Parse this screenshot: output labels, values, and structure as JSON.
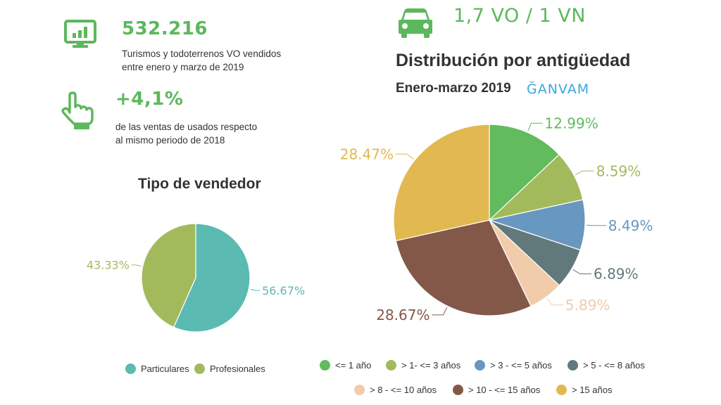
{
  "colors": {
    "accent": "#5cb85c",
    "ganvam": "#3aa6dc",
    "teal": "#5bbab1",
    "olive": "#a2ba5c"
  },
  "stats": [
    {
      "icon": "monitor-chart-icon",
      "value": "532.216",
      "desc_line1": "Turismos y todoterrenos VO vendidos",
      "desc_line2": "entre enero y marzo de 2019"
    },
    {
      "icon": "hand-pointer-icon",
      "value": "+4,1%",
      "desc_line1": "de las ventas de usados respecto",
      "desc_line2": "al mismo periodo de 2018"
    }
  ],
  "ratio": {
    "icon": "car-icon",
    "value": "1,7 VO / 1 VN"
  },
  "brand": {
    "logo": "ĞANVAM"
  },
  "chart_data": [
    {
      "type": "pie",
      "title": "Tipo de vendedor",
      "labels": [
        "Particulares",
        "Profesionales"
      ],
      "values": [
        56.67,
        43.33
      ],
      "value_labels": [
        "56.67%",
        "43.33%"
      ],
      "colors": [
        "#5bbab1",
        "#a2ba5c"
      ],
      "start_angle_deg": 0,
      "legend": "bottom"
    },
    {
      "type": "pie",
      "title": "Distribución por antigüedad",
      "subtitle": "Enero-marzo 2019",
      "labels": [
        "<= 1 año",
        "> 1- <= 3 años",
        "> 3 - <= 5 años",
        "> 5 - <= 8 años",
        "> 8 - <= 10 años",
        "> 10 - <= 15 años",
        "> 15 años"
      ],
      "values": [
        12.99,
        8.59,
        8.49,
        6.89,
        5.89,
        28.67,
        28.47
      ],
      "value_labels": [
        "12.99%",
        "8.59%",
        "8.49%",
        "6.89%",
        "5.89%",
        "28.67%",
        "28.47%"
      ],
      "colors": [
        "#62bb5c",
        "#a2ba5c",
        "#6897bf",
        "#62797c",
        "#f0ccaa",
        "#845848",
        "#e2b850"
      ],
      "start_angle_deg": 0,
      "legend": "bottom"
    }
  ]
}
